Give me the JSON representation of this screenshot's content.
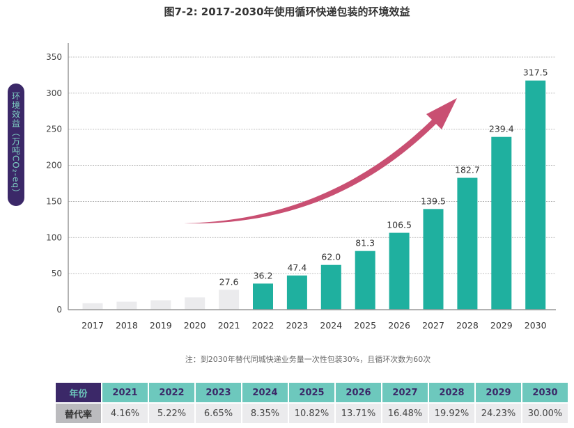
{
  "title": "图7-2: 2017-2030年使用循环快递包装的环境效益",
  "ylabel": "环境效益（万吨CO₂-eq）",
  "note": "注：到2030年替代同城快递业务量一次性包装30%，且循环次数为60次",
  "colors": {
    "historical_bar": "#ebebed",
    "projected_bar": "#1fb09f",
    "arrow": "#c94f72",
    "pill": "#3b2868",
    "pill_text": "#7fd3c4"
  },
  "chart_data": {
    "type": "bar",
    "title": "图7-2: 2017-2030年使用循环快递包装的环境效益",
    "xlabel": "",
    "ylabel": "环境效益（万吨CO₂-eq）",
    "ylim": [
      0,
      350
    ],
    "yticks": [
      0,
      50,
      100,
      150,
      200,
      250,
      300,
      350
    ],
    "grid": true,
    "categories": [
      "2017",
      "2018",
      "2019",
      "2020",
      "2021",
      "2022",
      "2023",
      "2024",
      "2025",
      "2026",
      "2027",
      "2028",
      "2029",
      "2030"
    ],
    "values": [
      9,
      11,
      13,
      17,
      27.6,
      36.2,
      47.4,
      62.0,
      81.3,
      106.5,
      139.5,
      182.7,
      239.4,
      317.5
    ],
    "labels": [
      "",
      "",
      "",
      "",
      "27.6",
      "36.2",
      "47.4",
      "62.0",
      "81.3",
      "106.5",
      "139.5",
      "182.7",
      "239.4",
      "317.5"
    ],
    "highlight": [
      false,
      false,
      false,
      false,
      false,
      true,
      true,
      true,
      true,
      true,
      true,
      true,
      true,
      true
    ],
    "annotations": [
      "upward trend arrow"
    ]
  },
  "table": {
    "header_label": "年份",
    "row_label": "替代率",
    "years": [
      "2021",
      "2022",
      "2023",
      "2024",
      "2025",
      "2026",
      "2027",
      "2028",
      "2029",
      "2030"
    ],
    "rates": [
      "4.16%",
      "5.22%",
      "6.65%",
      "8.35%",
      "10.82%",
      "13.71%",
      "16.48%",
      "19.92%",
      "24.23%",
      "30.00%"
    ]
  }
}
